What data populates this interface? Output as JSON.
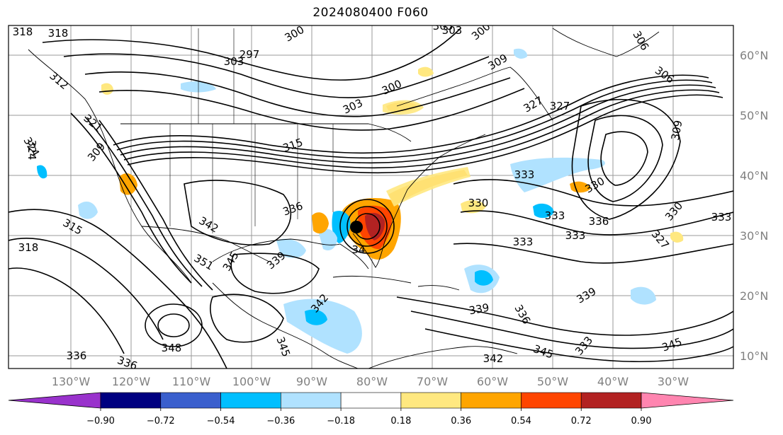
{
  "title": "2024080400 F060",
  "lon_labels": [
    "130°W",
    "120°W",
    "110°W",
    "100°W",
    "90°W",
    "80°W",
    "70°W",
    "60°W",
    "50°W",
    "40°W",
    "30°W"
  ],
  "lat_labels": [
    "60°N",
    "50°N",
    "40°N",
    "30°N",
    "20°N",
    "10°N"
  ],
  "contour_labels": [
    "318",
    "297",
    "303",
    "306",
    "300",
    "303",
    "303",
    "309",
    "300",
    "300",
    "327",
    "327",
    "309",
    "306",
    "312",
    "321",
    "324",
    "309",
    "315",
    "315",
    "318",
    "336",
    "333",
    "330",
    "333",
    "330",
    "333",
    "333",
    "336",
    "345",
    "339",
    "342",
    "351",
    "342",
    "348",
    "345",
    "339",
    "336",
    "345",
    "342",
    "336",
    "336",
    "345",
    "339",
    "333",
    "327",
    "318",
    "324",
    "333",
    "303",
    "330"
  ],
  "colorbar": {
    "ticks": [
      "−0.90",
      "−0.72",
      "−0.54",
      "−0.36",
      "−0.18",
      "0.18",
      "0.36",
      "0.54",
      "0.72",
      "0.90"
    ],
    "colors": [
      "#9932cc",
      "#000080",
      "#3a5fcd",
      "#00bfff",
      "#b0e2ff",
      "#ffffff",
      "#ffe880",
      "#ffa500",
      "#ff4500",
      "#b22222",
      "#ff85b0"
    ]
  },
  "storm_marker": "tropical-cyclone-center"
}
